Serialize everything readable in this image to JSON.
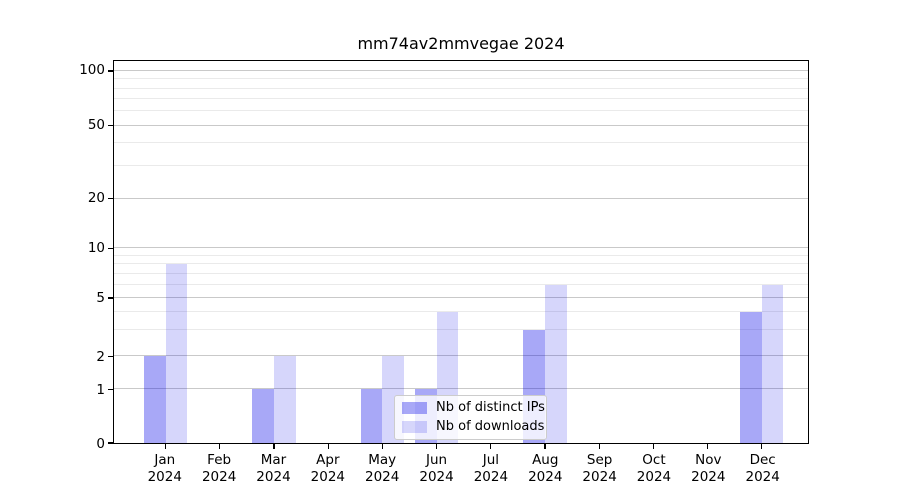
{
  "title": "mm74av2mmvegae 2024",
  "legend": {
    "items": [
      {
        "label": "Nb of distinct IPs",
        "series_key": "distinct_ips"
      },
      {
        "label": "Nb of downloads",
        "series_key": "downloads"
      }
    ]
  },
  "colors": {
    "bar_distinct_ips": "rgba(0,0,232,0.34)",
    "bar_downloads": "rgba(0,0,232,0.16)",
    "bar_distinct_ips_hex_on_white": "#a9a9f5",
    "bar_downloads_hex_on_white": "#d8d8f7",
    "grid_major": "#c9c9c9",
    "grid_minor": "#eaeaea",
    "axis": "#000000",
    "legend_border": "#cccccc"
  },
  "chart_data": {
    "type": "bar",
    "title": "mm74av2mmvegae 2024",
    "categories": [
      "Jan 2024",
      "Feb 2024",
      "Mar 2024",
      "Apr 2024",
      "May 2024",
      "Jun 2024",
      "Jul 2024",
      "Aug 2024",
      "Sep 2024",
      "Oct 2024",
      "Nov 2024",
      "Dec 2024"
    ],
    "series": [
      {
        "name": "Nb of distinct IPs",
        "values": [
          2,
          0,
          1,
          0,
          1,
          1,
          0,
          3,
          0,
          0,
          0,
          4
        ]
      },
      {
        "name": "Nb of downloads",
        "values": [
          8,
          0,
          2,
          0,
          2,
          4,
          0,
          6,
          0,
          0,
          0,
          6
        ]
      }
    ],
    "xlabel": "",
    "ylabel": "",
    "yscale": "symlog",
    "y_major_ticks": [
      0,
      1,
      2,
      5,
      10,
      20,
      50,
      100
    ],
    "y_minor_gridlines": [
      3,
      4,
      6,
      7,
      8,
      9,
      30,
      40,
      60,
      70,
      80,
      90
    ],
    "ylim": [
      0,
      110
    ],
    "grid": true,
    "legend_position": "inside lower-center"
  }
}
